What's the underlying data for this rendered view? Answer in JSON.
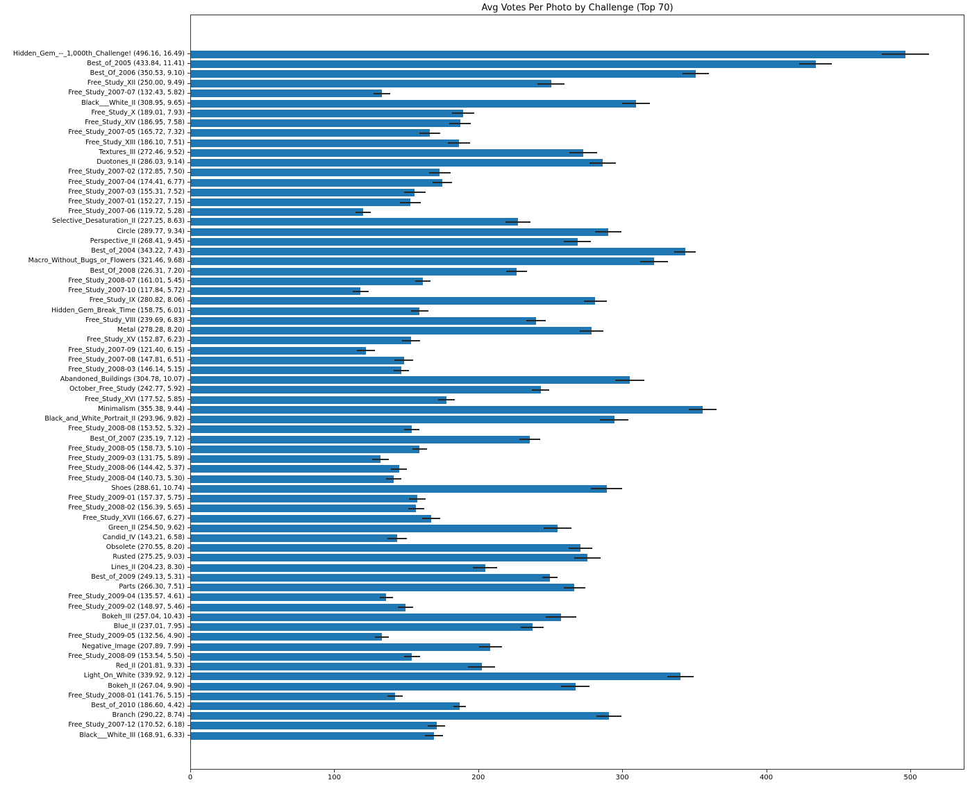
{
  "chart_data": {
    "type": "bar",
    "orientation": "horizontal",
    "title": "Avg Votes Per Photo by Challenge (Top 70)",
    "xlabel": "",
    "ylabel": "",
    "xlim": [
      0,
      537.6
    ],
    "xticks": [
      0,
      100,
      200,
      300,
      400,
      500
    ],
    "grid": false,
    "legend": "none",
    "bar_color": "#1f77b4",
    "error_color": "#262626",
    "label_format": "{name} ({value}, {err})",
    "categories": [
      "Hidden_Gem_--_1,000th_Challenge!",
      "Best_of_2005",
      "Best_Of_2006",
      "Free_Study_XII",
      "Free_Study_2007-07",
      "Black___White_II",
      "Free_Study_X",
      "Free_Study_XIV",
      "Free_Study_2007-05",
      "Free_Study_XIII",
      "Textures_III",
      "Duotones_II",
      "Free_Study_2007-02",
      "Free_Study_2007-04",
      "Free_Study_2007-03",
      "Free_Study_2007-01",
      "Free_Study_2007-06",
      "Selective_Desaturation_II",
      "Circle",
      "Perspective_II",
      "Best_of_2004",
      "Macro_Without_Bugs_or_Flowers",
      "Best_Of_2008",
      "Free_Study_2008-07",
      "Free_Study_2007-10",
      "Free_Study_IX",
      "Hidden_Gem_Break_Time",
      "Free_Study_VIII",
      "Metal",
      "Free_Study_XV",
      "Free_Study_2007-09",
      "Free_Study_2007-08",
      "Free_Study_2008-03",
      "Abandoned_Buildings",
      "October_Free_Study",
      "Free_Study_XVI",
      "Minimalism",
      "Black_and_White_Portrait_II",
      "Free_Study_2008-08",
      "Best_Of_2007",
      "Free_Study_2008-05",
      "Free_Study_2009-03",
      "Free_Study_2008-06",
      "Free_Study_2008-04",
      "Shoes",
      "Free_Study_2009-01",
      "Free_Study_2008-02",
      "Free_Study_XVII",
      "Green_II",
      "Candid_IV",
      "Obsolete",
      "Rusted",
      "Lines_II",
      "Best_of_2009",
      "Parts",
      "Free_Study_2009-04",
      "Free_Study_2009-02",
      "Bokeh_III",
      "Blue_II",
      "Free_Study_2009-05",
      "Negative_Image",
      "Free_Study_2008-09",
      "Red_II",
      "Light_On_White",
      "Bokeh_II",
      "Free_Study_2008-01",
      "Best_of_2010",
      "Branch",
      "Free_Study_2007-12",
      "Black___White_III"
    ],
    "values": [
      496.16,
      433.84,
      350.53,
      250.0,
      132.43,
      308.95,
      189.01,
      186.95,
      165.72,
      186.1,
      272.46,
      286.03,
      172.85,
      174.41,
      155.31,
      152.27,
      119.72,
      227.25,
      289.77,
      268.41,
      343.22,
      321.46,
      226.31,
      161.01,
      117.84,
      280.82,
      158.75,
      239.69,
      278.28,
      152.87,
      121.4,
      147.81,
      146.14,
      304.78,
      242.77,
      177.52,
      355.38,
      293.96,
      153.52,
      235.19,
      158.73,
      131.75,
      144.42,
      140.73,
      288.61,
      157.37,
      156.39,
      166.67,
      254.5,
      143.21,
      270.55,
      275.25,
      204.23,
      249.13,
      266.3,
      135.57,
      148.97,
      257.04,
      237.01,
      132.56,
      207.89,
      153.54,
      201.81,
      339.92,
      267.04,
      141.76,
      186.6,
      290.22,
      170.52,
      168.91
    ],
    "errors": [
      16.49,
      11.41,
      9.1,
      9.49,
      5.82,
      9.65,
      7.93,
      7.58,
      7.32,
      7.51,
      9.52,
      9.14,
      7.5,
      6.77,
      7.52,
      7.15,
      5.28,
      8.63,
      9.34,
      9.45,
      7.43,
      9.68,
      7.2,
      5.45,
      5.72,
      8.06,
      6.01,
      6.83,
      8.2,
      6.23,
      6.15,
      6.51,
      5.15,
      10.07,
      5.92,
      5.85,
      9.44,
      9.82,
      5.32,
      7.12,
      5.1,
      5.89,
      5.37,
      5.3,
      10.74,
      5.75,
      5.65,
      6.27,
      9.62,
      6.58,
      8.2,
      9.03,
      8.3,
      5.31,
      7.51,
      4.61,
      5.46,
      10.43,
      7.95,
      4.9,
      7.99,
      5.5,
      9.33,
      9.12,
      9.9,
      5.15,
      4.42,
      8.74,
      6.18,
      6.33
    ]
  }
}
